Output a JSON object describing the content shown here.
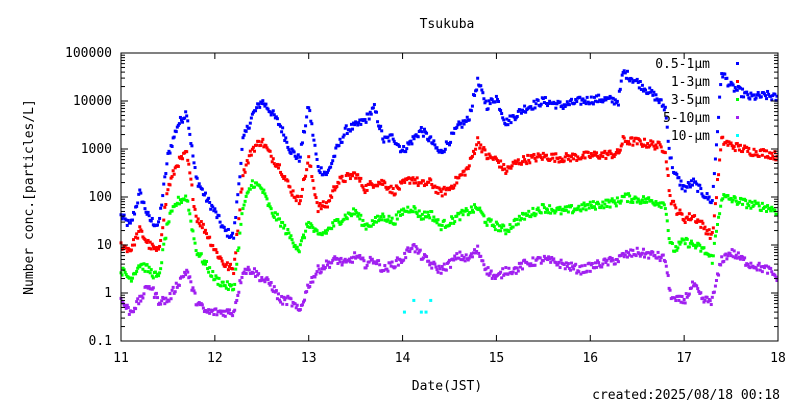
{
  "chart_data": {
    "type": "scatter",
    "title": "Tsukuba",
    "xlabel": "Date(JST)",
    "ylabel": "Number conc.[particles/L]",
    "footer": "created:2025/08/18 00:18",
    "y_scale": "log",
    "ylim": [
      0.1,
      100000
    ],
    "xlim": [
      11,
      18
    ],
    "x_ticks": [
      "11",
      "12",
      "13",
      "14",
      "15",
      "16",
      "17",
      "18"
    ],
    "y_ticks": [
      "0.1",
      "1",
      "10",
      "100",
      "1000",
      "10000",
      "100000"
    ],
    "grid": false,
    "legend_position": "top-right",
    "series": [
      {
        "name": "0.5-1μm",
        "color": "#0000ff",
        "points": [
          [
            11.0,
            40
          ],
          [
            11.1,
            25
          ],
          [
            11.2,
            120
          ],
          [
            11.3,
            35
          ],
          [
            11.4,
            25
          ],
          [
            11.5,
            700
          ],
          [
            11.6,
            3000
          ],
          [
            11.7,
            6000
          ],
          [
            11.8,
            250
          ],
          [
            11.9,
            100
          ],
          [
            12.0,
            50
          ],
          [
            12.1,
            20
          ],
          [
            12.2,
            15
          ],
          [
            12.3,
            1500
          ],
          [
            12.4,
            5000
          ],
          [
            12.5,
            10000
          ],
          [
            12.6,
            6000
          ],
          [
            12.7,
            3000
          ],
          [
            12.8,
            1000
          ],
          [
            12.9,
            600
          ],
          [
            13.0,
            8000
          ],
          [
            13.1,
            400
          ],
          [
            13.2,
            300
          ],
          [
            13.3,
            1000
          ],
          [
            13.4,
            2500
          ],
          [
            13.5,
            3000
          ],
          [
            13.6,
            4000
          ],
          [
            13.7,
            7000
          ],
          [
            13.8,
            1500
          ],
          [
            13.9,
            1800
          ],
          [
            14.0,
            900
          ],
          [
            14.1,
            1500
          ],
          [
            14.2,
            2500
          ],
          [
            14.3,
            1500
          ],
          [
            14.4,
            800
          ],
          [
            14.5,
            1500
          ],
          [
            14.6,
            3000
          ],
          [
            14.7,
            4000
          ],
          [
            14.8,
            25000
          ],
          [
            14.9,
            8000
          ],
          [
            15.0,
            12000
          ],
          [
            15.1,
            3500
          ],
          [
            15.2,
            5000
          ],
          [
            15.3,
            7000
          ],
          [
            15.5,
            10000
          ],
          [
            15.7,
            8000
          ],
          [
            15.9,
            10000
          ],
          [
            16.1,
            11000
          ],
          [
            16.3,
            10000
          ],
          [
            16.35,
            40000
          ],
          [
            16.5,
            25000
          ],
          [
            16.7,
            12000
          ],
          [
            16.8,
            7000
          ],
          [
            16.85,
            700
          ],
          [
            16.9,
            300
          ],
          [
            17.0,
            150
          ],
          [
            17.1,
            200
          ],
          [
            17.2,
            120
          ],
          [
            17.3,
            80
          ],
          [
            17.4,
            40000
          ],
          [
            17.5,
            20000
          ],
          [
            17.7,
            12000
          ],
          [
            17.9,
            13000
          ],
          [
            18.0,
            11000
          ]
        ]
      },
      {
        "name": "1-3μm",
        "color": "#ff0000",
        "points": [
          [
            11.0,
            10
          ],
          [
            11.1,
            8
          ],
          [
            11.2,
            20
          ],
          [
            11.3,
            10
          ],
          [
            11.4,
            7
          ],
          [
            11.5,
            150
          ],
          [
            11.6,
            500
          ],
          [
            11.7,
            800
          ],
          [
            11.8,
            40
          ],
          [
            11.9,
            20
          ],
          [
            12.0,
            8
          ],
          [
            12.1,
            4
          ],
          [
            12.2,
            3
          ],
          [
            12.3,
            300
          ],
          [
            12.4,
            1000
          ],
          [
            12.5,
            1500
          ],
          [
            12.6,
            700
          ],
          [
            12.7,
            400
          ],
          [
            12.8,
            150
          ],
          [
            12.9,
            80
          ],
          [
            13.0,
            600
          ],
          [
            13.1,
            60
          ],
          [
            13.2,
            70
          ],
          [
            13.3,
            200
          ],
          [
            13.4,
            250
          ],
          [
            13.5,
            300
          ],
          [
            13.6,
            150
          ],
          [
            13.7,
            200
          ],
          [
            13.8,
            200
          ],
          [
            13.9,
            130
          ],
          [
            14.0,
            180
          ],
          [
            14.1,
            250
          ],
          [
            14.2,
            180
          ],
          [
            14.3,
            200
          ],
          [
            14.4,
            120
          ],
          [
            14.5,
            150
          ],
          [
            14.6,
            250
          ],
          [
            14.7,
            400
          ],
          [
            14.8,
            1500
          ],
          [
            14.9,
            700
          ],
          [
            15.0,
            600
          ],
          [
            15.1,
            350
          ],
          [
            15.2,
            500
          ],
          [
            15.3,
            600
          ],
          [
            15.5,
            700
          ],
          [
            15.7,
            650
          ],
          [
            15.9,
            700
          ],
          [
            16.1,
            750
          ],
          [
            16.3,
            800
          ],
          [
            16.35,
            1500
          ],
          [
            16.5,
            1400
          ],
          [
            16.7,
            1200
          ],
          [
            16.8,
            1000
          ],
          [
            16.85,
            100
          ],
          [
            16.9,
            60
          ],
          [
            17.0,
            35
          ],
          [
            17.1,
            40
          ],
          [
            17.2,
            25
          ],
          [
            17.3,
            15
          ],
          [
            17.4,
            1500
          ],
          [
            17.5,
            1200
          ],
          [
            17.7,
            900
          ],
          [
            17.9,
            800
          ],
          [
            18.0,
            700
          ]
        ]
      },
      {
        "name": "3-5μm",
        "color": "#00ff00",
        "points": [
          [
            11.0,
            3
          ],
          [
            11.1,
            2
          ],
          [
            11.2,
            4
          ],
          [
            11.3,
            3
          ],
          [
            11.4,
            2
          ],
          [
            11.5,
            30
          ],
          [
            11.6,
            80
          ],
          [
            11.7,
            100
          ],
          [
            11.8,
            8
          ],
          [
            11.9,
            4
          ],
          [
            12.0,
            2
          ],
          [
            12.1,
            1.5
          ],
          [
            12.2,
            1.2
          ],
          [
            12.3,
            60
          ],
          [
            12.4,
            200
          ],
          [
            12.5,
            150
          ],
          [
            12.6,
            50
          ],
          [
            12.7,
            30
          ],
          [
            12.8,
            15
          ],
          [
            12.9,
            8
          ],
          [
            13.0,
            30
          ],
          [
            13.1,
            15
          ],
          [
            13.2,
            20
          ],
          [
            13.3,
            30
          ],
          [
            13.4,
            40
          ],
          [
            13.5,
            50
          ],
          [
            13.6,
            25
          ],
          [
            13.7,
            30
          ],
          [
            13.8,
            40
          ],
          [
            13.9,
            30
          ],
          [
            14.0,
            50
          ],
          [
            14.1,
            60
          ],
          [
            14.2,
            40
          ],
          [
            14.3,
            45
          ],
          [
            14.4,
            25
          ],
          [
            14.5,
            30
          ],
          [
            14.6,
            40
          ],
          [
            14.7,
            50
          ],
          [
            14.8,
            60
          ],
          [
            14.9,
            30
          ],
          [
            15.0,
            25
          ],
          [
            15.1,
            20
          ],
          [
            15.2,
            30
          ],
          [
            15.3,
            40
          ],
          [
            15.5,
            60
          ],
          [
            15.7,
            50
          ],
          [
            15.9,
            60
          ],
          [
            16.1,
            70
          ],
          [
            16.3,
            80
          ],
          [
            16.35,
            100
          ],
          [
            16.5,
            90
          ],
          [
            16.7,
            80
          ],
          [
            16.8,
            70
          ],
          [
            16.85,
            10
          ],
          [
            16.9,
            8
          ],
          [
            17.0,
            12
          ],
          [
            17.1,
            10
          ],
          [
            17.2,
            8
          ],
          [
            17.3,
            5
          ],
          [
            17.4,
            100
          ],
          [
            17.5,
            90
          ],
          [
            17.7,
            70
          ],
          [
            17.9,
            60
          ],
          [
            18.0,
            50
          ]
        ]
      },
      {
        "name": "5-10μm",
        "color": "#a020f0",
        "points": [
          [
            11.0,
            0.7
          ],
          [
            11.1,
            0.4
          ],
          [
            11.2,
            0.7
          ],
          [
            11.3,
            1.5
          ],
          [
            11.4,
            0.7
          ],
          [
            11.5,
            0.7
          ],
          [
            11.6,
            1.5
          ],
          [
            11.7,
            3
          ],
          [
            11.8,
            0.7
          ],
          [
            11.9,
            0.4
          ],
          [
            12.0,
            0.4
          ],
          [
            12.1,
            0.4
          ],
          [
            12.2,
            0.4
          ],
          [
            12.3,
            3
          ],
          [
            12.4,
            3
          ],
          [
            12.5,
            2
          ],
          [
            12.6,
            1.5
          ],
          [
            12.7,
            0.7
          ],
          [
            12.8,
            0.7
          ],
          [
            12.9,
            0.4
          ],
          [
            13.0,
            1.5
          ],
          [
            13.1,
            3
          ],
          [
            13.2,
            4
          ],
          [
            13.3,
            5
          ],
          [
            13.4,
            4
          ],
          [
            13.5,
            6
          ],
          [
            13.6,
            4
          ],
          [
            13.7,
            5
          ],
          [
            13.8,
            3
          ],
          [
            13.9,
            4
          ],
          [
            14.0,
            5
          ],
          [
            14.1,
            10
          ],
          [
            14.2,
            6
          ],
          [
            14.3,
            4
          ],
          [
            14.4,
            3
          ],
          [
            14.5,
            4
          ],
          [
            14.6,
            6
          ],
          [
            14.7,
            5
          ],
          [
            14.8,
            8
          ],
          [
            14.9,
            3
          ],
          [
            15.0,
            2
          ],
          [
            15.1,
            3
          ],
          [
            15.2,
            3
          ],
          [
            15.3,
            4
          ],
          [
            15.5,
            5
          ],
          [
            15.7,
            4
          ],
          [
            15.9,
            3
          ],
          [
            16.1,
            4
          ],
          [
            16.3,
            5
          ],
          [
            16.35,
            6
          ],
          [
            16.5,
            7
          ],
          [
            16.7,
            6
          ],
          [
            16.8,
            5
          ],
          [
            16.85,
            1
          ],
          [
            16.9,
            0.7
          ],
          [
            17.0,
            0.7
          ],
          [
            17.1,
            1.5
          ],
          [
            17.2,
            0.7
          ],
          [
            17.3,
            0.7
          ],
          [
            17.4,
            5
          ],
          [
            17.5,
            7
          ],
          [
            17.7,
            4
          ],
          [
            17.9,
            3
          ],
          [
            18.0,
            2
          ]
        ]
      },
      {
        "name": "10-μm",
        "color": "#00ffff",
        "points": [
          [
            14.02,
            0.4
          ],
          [
            14.12,
            0.7
          ],
          [
            14.2,
            0.4
          ],
          [
            14.25,
            0.4
          ],
          [
            14.3,
            0.7
          ]
        ]
      }
    ]
  }
}
